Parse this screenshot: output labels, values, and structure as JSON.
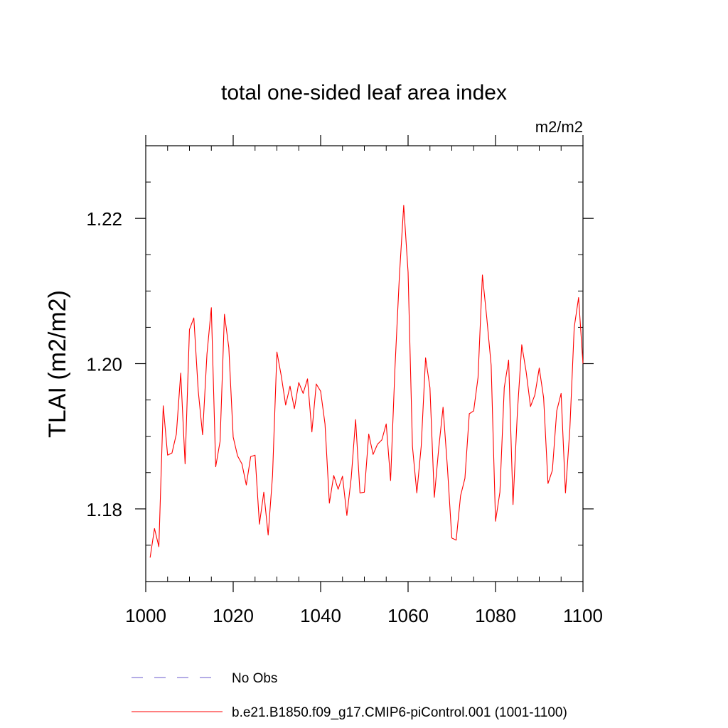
{
  "chart_data": {
    "type": "line",
    "title": "total one-sided leaf area index",
    "units": "m2/m2",
    "xlabel": "",
    "ylabel": "TLAI  (m2/m2)",
    "xlim": [
      1000,
      1100
    ],
    "ylim": [
      1.17,
      1.23
    ],
    "xticks": [
      1000,
      1020,
      1040,
      1060,
      1080,
      1100
    ],
    "xtick_labels": [
      "1000",
      "1020",
      "1040",
      "1060",
      "1080",
      "1100"
    ],
    "yticks": [
      1.18,
      1.2,
      1.22
    ],
    "ytick_labels": [
      "1.18",
      "1.20",
      "1.22"
    ],
    "series": [
      {
        "name": "b.e21.B1850.f09_g17.CMIP6-piControl.001 (1001-1100)",
        "color": "#ff0000",
        "style": "solid",
        "x": [
          1001,
          1002,
          1003,
          1004,
          1005,
          1006,
          1007,
          1008,
          1009,
          1010,
          1011,
          1012,
          1013,
          1014,
          1015,
          1016,
          1017,
          1018,
          1019,
          1020,
          1021,
          1022,
          1023,
          1024,
          1025,
          1026,
          1027,
          1028,
          1029,
          1030,
          1031,
          1032,
          1033,
          1034,
          1035,
          1036,
          1037,
          1038,
          1039,
          1040,
          1041,
          1042,
          1043,
          1044,
          1045,
          1046,
          1047,
          1048,
          1049,
          1050,
          1051,
          1052,
          1053,
          1054,
          1055,
          1056,
          1057,
          1058,
          1059,
          1060,
          1061,
          1062,
          1063,
          1064,
          1065,
          1066,
          1067,
          1068,
          1069,
          1070,
          1071,
          1072,
          1073,
          1074,
          1075,
          1076,
          1077,
          1078,
          1079,
          1080,
          1081,
          1082,
          1083,
          1084,
          1085,
          1086,
          1087,
          1088,
          1089,
          1090,
          1091,
          1092,
          1093,
          1094,
          1095,
          1096,
          1097,
          1098,
          1099,
          1100
        ],
        "y": [
          1.1733,
          1.1773,
          1.1748,
          1.1942,
          1.1874,
          1.1877,
          1.1903,
          1.1987,
          1.1862,
          1.2047,
          1.2063,
          1.1963,
          1.1902,
          1.2013,
          1.2077,
          1.1858,
          1.1893,
          1.2068,
          1.2022,
          1.1899,
          1.1873,
          1.1862,
          1.1833,
          1.1872,
          1.1874,
          1.1779,
          1.1823,
          1.1764,
          1.1846,
          1.2016,
          1.1983,
          1.1943,
          1.1969,
          1.1938,
          1.1974,
          1.1959,
          1.1979,
          1.1906,
          1.1972,
          1.1962,
          1.1917,
          1.1808,
          1.1846,
          1.1827,
          1.1845,
          1.1791,
          1.1843,
          1.1923,
          1.1822,
          1.1823,
          1.1903,
          1.1875,
          1.1889,
          1.1895,
          1.1917,
          1.1839,
          1.1994,
          1.2119,
          1.2218,
          1.2126,
          1.1886,
          1.1822,
          1.1886,
          1.2008,
          1.1967,
          1.1816,
          1.1883,
          1.194,
          1.1857,
          1.176,
          1.1757,
          1.1818,
          1.1842,
          1.1931,
          1.1935,
          1.1981,
          1.2122,
          1.2063,
          1.1998,
          1.1783,
          1.1823,
          1.1967,
          1.2005,
          1.1806,
          1.1933,
          1.2026,
          1.1989,
          1.1941,
          1.1957,
          1.1994,
          1.1953,
          1.1835,
          1.1853,
          1.1935,
          1.1959,
          1.1822,
          1.191,
          1.205,
          1.2091,
          1.2
        ]
      }
    ],
    "legend": {
      "placement": "bottom",
      "entries": [
        {
          "label": "No Obs",
          "color": "#6a5acd",
          "style": "dashed"
        },
        {
          "label": "b.e21.B1850.f09_g17.CMIP6-piControl.001 (1001-1100)",
          "color": "#ff0000",
          "style": "solid"
        }
      ]
    }
  }
}
